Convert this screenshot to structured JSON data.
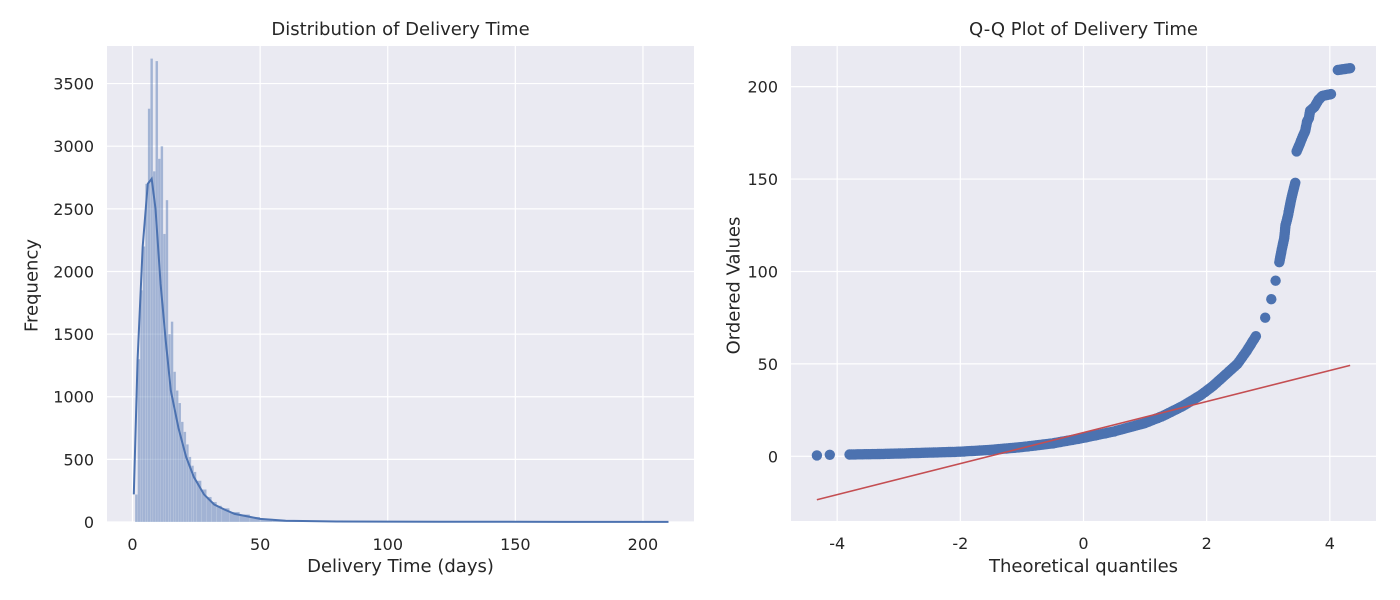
{
  "figure": {
    "background": "#ffffff",
    "axes_facecolor": "#eaeaf2",
    "grid_color": "#ffffff"
  },
  "chart_data": [
    {
      "type": "bar",
      "subtype": "histogram_with_kde",
      "title": "Distribution of Delivery Time",
      "xlabel": "Delivery Time (days)",
      "ylabel": "Frequency",
      "xlim": [
        -10,
        220
      ],
      "ylim": [
        0,
        3800
      ],
      "xticks": [
        0,
        50,
        100,
        150,
        200
      ],
      "xtick_labels": [
        "0",
        "50",
        "100",
        "150",
        "200"
      ],
      "yticks": [
        0,
        500,
        1000,
        1500,
        2000,
        2500,
        3000,
        3500
      ],
      "ytick_labels": [
        "0",
        "500",
        "1000",
        "1500",
        "2000",
        "2500",
        "3000",
        "3500"
      ],
      "grid": true,
      "bar_color": "#4c72b0",
      "bar_alpha": 0.45,
      "kde_color": "#4c72b0",
      "bins": [
        {
          "x": 1,
          "count": 220
        },
        {
          "x": 2,
          "count": 1300
        },
        {
          "x": 3,
          "count": 1850
        },
        {
          "x": 4,
          "count": 2200
        },
        {
          "x": 5,
          "count": 2700
        },
        {
          "x": 6,
          "count": 3300
        },
        {
          "x": 7,
          "count": 3700
        },
        {
          "x": 8,
          "count": 2800
        },
        {
          "x": 9,
          "count": 3680
        },
        {
          "x": 10,
          "count": 2900
        },
        {
          "x": 11,
          "count": 3000
        },
        {
          "x": 12,
          "count": 2300
        },
        {
          "x": 13,
          "count": 2570
        },
        {
          "x": 14,
          "count": 1500
        },
        {
          "x": 15,
          "count": 1600
        },
        {
          "x": 16,
          "count": 1200
        },
        {
          "x": 17,
          "count": 1050
        },
        {
          "x": 18,
          "count": 950
        },
        {
          "x": 19,
          "count": 800
        },
        {
          "x": 20,
          "count": 720
        },
        {
          "x": 21,
          "count": 620
        },
        {
          "x": 22,
          "count": 520
        },
        {
          "x": 23,
          "count": 450
        },
        {
          "x": 24,
          "count": 400
        },
        {
          "x": 25,
          "count": 330
        },
        {
          "x": 27,
          "count": 260
        },
        {
          "x": 29,
          "count": 200
        },
        {
          "x": 31,
          "count": 160
        },
        {
          "x": 33,
          "count": 130
        },
        {
          "x": 35,
          "count": 110
        },
        {
          "x": 38,
          "count": 80
        },
        {
          "x": 42,
          "count": 60
        },
        {
          "x": 46,
          "count": 40
        },
        {
          "x": 50,
          "count": 25
        },
        {
          "x": 55,
          "count": 15
        },
        {
          "x": 60,
          "count": 10
        },
        {
          "x": 70,
          "count": 5
        },
        {
          "x": 90,
          "count": 3
        },
        {
          "x": 120,
          "count": 2
        },
        {
          "x": 160,
          "count": 1
        },
        {
          "x": 200,
          "count": 1
        },
        {
          "x": 209,
          "count": 1
        }
      ],
      "kde": [
        {
          "x": 0.5,
          "y": 220
        },
        {
          "x": 2,
          "y": 1300
        },
        {
          "x": 4,
          "y": 2200
        },
        {
          "x": 6,
          "y": 2700
        },
        {
          "x": 7.5,
          "y": 2740
        },
        {
          "x": 9,
          "y": 2500
        },
        {
          "x": 11,
          "y": 1900
        },
        {
          "x": 13,
          "y": 1450
        },
        {
          "x": 15,
          "y": 1050
        },
        {
          "x": 18,
          "y": 750
        },
        {
          "x": 21,
          "y": 520
        },
        {
          "x": 24,
          "y": 360
        },
        {
          "x": 28,
          "y": 220
        },
        {
          "x": 32,
          "y": 140
        },
        {
          "x": 36,
          "y": 100
        },
        {
          "x": 40,
          "y": 65
        },
        {
          "x": 45,
          "y": 45
        },
        {
          "x": 50,
          "y": 25
        },
        {
          "x": 60,
          "y": 10
        },
        {
          "x": 80,
          "y": 4
        },
        {
          "x": 120,
          "y": 2
        },
        {
          "x": 170,
          "y": 1
        },
        {
          "x": 210,
          "y": 1
        }
      ]
    },
    {
      "type": "scatter",
      "subtype": "qq_plot",
      "title": "Q-Q Plot of Delivery Time",
      "xlabel": "Theoretical quantiles",
      "ylabel": "Ordered Values",
      "xlim": [
        -4.75,
        4.75
      ],
      "ylim": [
        -35,
        222
      ],
      "xticks": [
        -4,
        -2,
        0,
        2,
        4
      ],
      "xtick_labels": [
        "-4",
        "-2",
        "0",
        "2",
        "4"
      ],
      "yticks": [
        0,
        50,
        100,
        150,
        200
      ],
      "ytick_labels": [
        "0",
        "50",
        "100",
        "150",
        "200"
      ],
      "grid": true,
      "point_color": "#4c72b0",
      "line_color": "#c44e52",
      "fit_line": {
        "x1": -4.33,
        "y1": -23.5,
        "x2": 4.33,
        "y2": 49.2
      },
      "points": [
        {
          "x": -4.33,
          "y": 0.5
        },
        {
          "x": -4.12,
          "y": 0.8
        },
        {
          "x": -3.8,
          "y": 1
        },
        {
          "x": -3.4,
          "y": 1.2
        },
        {
          "x": -3.0,
          "y": 1.5
        },
        {
          "x": -2.5,
          "y": 2
        },
        {
          "x": -2.0,
          "y": 2.5
        },
        {
          "x": -1.5,
          "y": 3.5
        },
        {
          "x": -1.0,
          "y": 5
        },
        {
          "x": -0.5,
          "y": 7
        },
        {
          "x": 0.0,
          "y": 10
        },
        {
          "x": 0.5,
          "y": 13.5
        },
        {
          "x": 1.0,
          "y": 18
        },
        {
          "x": 1.3,
          "y": 22
        },
        {
          "x": 1.6,
          "y": 27
        },
        {
          "x": 1.9,
          "y": 33
        },
        {
          "x": 2.1,
          "y": 38
        },
        {
          "x": 2.3,
          "y": 44
        },
        {
          "x": 2.5,
          "y": 50
        },
        {
          "x": 2.65,
          "y": 57
        },
        {
          "x": 2.8,
          "y": 65
        },
        {
          "x": 2.95,
          "y": 75
        },
        {
          "x": 3.05,
          "y": 85
        },
        {
          "x": 3.12,
          "y": 95
        },
        {
          "x": 3.18,
          "y": 105
        },
        {
          "x": 3.22,
          "y": 112
        },
        {
          "x": 3.26,
          "y": 118
        },
        {
          "x": 3.28,
          "y": 125
        },
        {
          "x": 3.32,
          "y": 130
        },
        {
          "x": 3.36,
          "y": 137
        },
        {
          "x": 3.4,
          "y": 143
        },
        {
          "x": 3.44,
          "y": 148
        },
        {
          "x": 3.46,
          "y": 165
        },
        {
          "x": 3.5,
          "y": 168
        },
        {
          "x": 3.56,
          "y": 173
        },
        {
          "x": 3.6,
          "y": 176
        },
        {
          "x": 3.63,
          "y": 181
        },
        {
          "x": 3.66,
          "y": 183
        },
        {
          "x": 3.68,
          "y": 187
        },
        {
          "x": 3.75,
          "y": 189
        },
        {
          "x": 3.82,
          "y": 193
        },
        {
          "x": 3.88,
          "y": 195
        },
        {
          "x": 3.95,
          "y": 195.5
        },
        {
          "x": 4.02,
          "y": 196
        },
        {
          "x": 4.13,
          "y": 209
        },
        {
          "x": 4.33,
          "y": 210
        }
      ]
    }
  ]
}
